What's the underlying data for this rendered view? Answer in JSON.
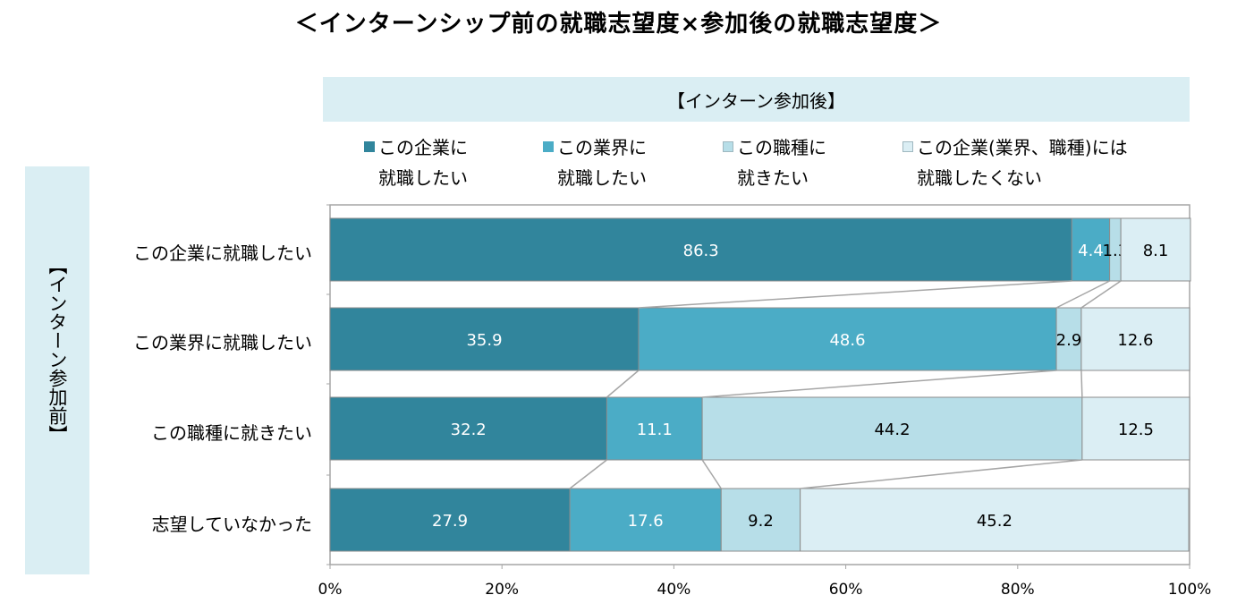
{
  "title": "＜インターンシップ前の就職志望度×参加後の就職志望度＞",
  "after_header": "【インターン参加後】",
  "before_header": "【インターン参加前】",
  "colors": [
    "#31859c",
    "#4bacc6",
    "#b7dee8",
    "#dbeef4"
  ],
  "legend": [
    "この企業に\n就職したい",
    "この業界に\n就職したい",
    "この職種に\n就きたい",
    "この企業(業界、職種)には\n就職したくない"
  ],
  "chart_data": {
    "type": "bar",
    "orientation": "horizontal",
    "stacked": "percent",
    "categories": [
      "この企業に就職したい",
      "この業界に就職したい",
      "この職種に就きたい",
      "志望していなかった"
    ],
    "series": [
      {
        "name": "この企業に就職したい",
        "values": [
          86.3,
          35.9,
          32.2,
          27.9
        ]
      },
      {
        "name": "この業界に就職したい",
        "values": [
          4.4,
          48.6,
          11.1,
          17.6
        ]
      },
      {
        "name": "この職種に就きたい",
        "values": [
          1.3,
          2.9,
          44.2,
          9.2
        ]
      },
      {
        "name": "この企業(業界、職種)には就職したくない",
        "values": [
          8.1,
          12.6,
          12.5,
          45.2
        ]
      }
    ],
    "xlim": [
      0,
      100
    ],
    "xticks": [
      "0%",
      "20%",
      "40%",
      "60%",
      "80%",
      "100%"
    ],
    "series_lines": true,
    "legend_position": "top"
  }
}
